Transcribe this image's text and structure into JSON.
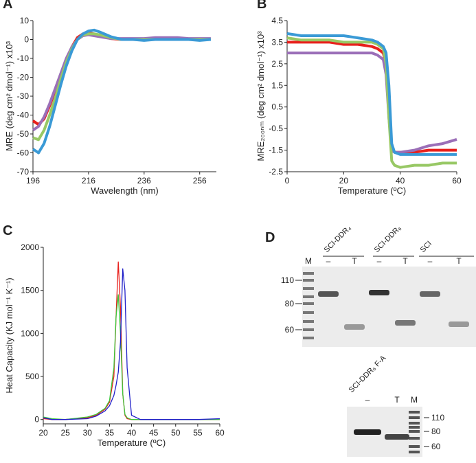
{
  "chart_data": [
    {
      "type": "line",
      "panel": "A",
      "xlabel": "Wavelength (nm)",
      "ylabel": "MRE (deg cm² dmol⁻¹) x10³",
      "x": [
        196,
        198,
        200,
        202,
        204,
        206,
        208,
        210,
        212,
        214,
        216,
        218,
        220,
        224,
        228,
        232,
        236,
        240,
        244,
        248,
        252,
        256,
        260
      ],
      "series": [
        {
          "color": "#e8201c",
          "values": [
            -43,
            -45,
            -42,
            -35,
            -27,
            -19,
            -11,
            -4,
            1,
            3,
            3.5,
            3,
            2,
            0.5,
            0,
            0,
            0,
            0,
            0,
            0,
            0,
            0,
            0
          ]
        },
        {
          "color": "#9b6fb8",
          "values": [
            -48,
            -46,
            -41,
            -34,
            -26,
            -18,
            -10,
            -4,
            0,
            2,
            2.5,
            2,
            1.5,
            0.5,
            0.5,
            0.5,
            0.5,
            1,
            1,
            1,
            0.5,
            0.5,
            0.5
          ]
        },
        {
          "color": "#98c865",
          "values": [
            -52,
            -53,
            -48,
            -40,
            -31,
            -21,
            -12,
            -5,
            0,
            2.5,
            3,
            3,
            2.5,
            1,
            0,
            0,
            0,
            0,
            0,
            0,
            0,
            0,
            0
          ]
        },
        {
          "color": "#3a9ad6",
          "values": [
            -58,
            -60,
            -55,
            -46,
            -35,
            -24,
            -14,
            -6,
            0,
            3,
            4.5,
            5,
            4,
            1.5,
            0,
            0,
            -0.5,
            0,
            0,
            0,
            0,
            -0.5,
            0
          ]
        }
      ],
      "xlim": [
        196,
        262
      ],
      "xticks": [
        196,
        216,
        236,
        256
      ],
      "ylim": [
        -70,
        10
      ],
      "yticks": [
        -70,
        -60,
        -50,
        -40,
        -30,
        -20,
        -10,
        0,
        10
      ]
    },
    {
      "type": "line",
      "panel": "B",
      "xlabel": "Temperature (ºC)",
      "ylabel": "MRE₂₀₀ₙₘ (deg cm² dmol⁻¹) x10³",
      "x": [
        0,
        5,
        10,
        15,
        20,
        25,
        30,
        32,
        34,
        35,
        36,
        37,
        38,
        40,
        45,
        50,
        55,
        60
      ],
      "series": [
        {
          "color": "#e8201c",
          "values": [
            3.5,
            3.5,
            3.5,
            3.5,
            3.4,
            3.4,
            3.3,
            3.2,
            3.0,
            2.5,
            0.5,
            -1.5,
            -1.6,
            -1.6,
            -1.6,
            -1.5,
            -1.5,
            -1.5
          ]
        },
        {
          "color": "#9b6fb8",
          "values": [
            3.0,
            3.0,
            3.0,
            3.0,
            3.0,
            3.0,
            3.0,
            2.9,
            2.7,
            2.0,
            0,
            -1.5,
            -1.6,
            -1.6,
            -1.5,
            -1.3,
            -1.2,
            -1.0
          ]
        },
        {
          "color": "#98c865",
          "values": [
            3.7,
            3.6,
            3.6,
            3.6,
            3.5,
            3.5,
            3.5,
            3.4,
            3.2,
            2.5,
            0,
            -2.0,
            -2.2,
            -2.3,
            -2.2,
            -2.2,
            -2.1,
            -2.1
          ]
        },
        {
          "color": "#3a9ad6",
          "values": [
            3.9,
            3.8,
            3.8,
            3.8,
            3.8,
            3.7,
            3.6,
            3.5,
            3.3,
            3.0,
            1.5,
            -1.2,
            -1.6,
            -1.7,
            -1.7,
            -1.7,
            -1.7,
            -1.7
          ]
        }
      ],
      "xlim": [
        0,
        60
      ],
      "xticks": [
        0,
        20,
        40,
        60
      ],
      "ylim": [
        -2.5,
        4.5
      ],
      "yticks": [
        -2.5,
        -1.5,
        -0.5,
        0.5,
        1.5,
        2.5,
        3.5,
        4.5
      ]
    },
    {
      "type": "line",
      "panel": "C",
      "xlabel": "Temperature (ºC)",
      "ylabel": "Heat Capacity (KJ mol⁻¹ K⁻¹)",
      "x": [
        20,
        22,
        25,
        30,
        32,
        34,
        35,
        36,
        36.5,
        37,
        37.5,
        38,
        38.5,
        39,
        40,
        42,
        45,
        50,
        55,
        60
      ],
      "series": [
        {
          "color": "#e8201c",
          "values": [
            10,
            0,
            0,
            20,
            50,
            120,
            200,
            500,
            1200,
            1830,
            1300,
            300,
            50,
            10,
            0,
            0,
            0,
            0,
            0,
            0
          ]
        },
        {
          "color": "#3cc83c",
          "values": [
            30,
            10,
            0,
            30,
            60,
            130,
            220,
            600,
            1200,
            1450,
            1000,
            300,
            60,
            20,
            0,
            0,
            0,
            0,
            0,
            0
          ]
        },
        {
          "color": "#2020c8",
          "values": [
            20,
            0,
            0,
            10,
            40,
            100,
            160,
            280,
            400,
            550,
            900,
            1750,
            1500,
            600,
            50,
            0,
            0,
            0,
            0,
            10
          ]
        }
      ],
      "xlim": [
        20,
        60
      ],
      "xticks": [
        20,
        25,
        30,
        35,
        40,
        45,
        50,
        55,
        60
      ],
      "ylim": [
        -50,
        2000
      ],
      "yticks": [
        0,
        500,
        1000,
        1500,
        2000
      ]
    }
  ],
  "gel": {
    "panel": "D",
    "top": {
      "groups": [
        "SCI-DDR₄",
        "SCI-DDR₆",
        "SCI"
      ],
      "lanes": [
        "M",
        "–",
        "T",
        "–",
        "T",
        "–",
        "T"
      ],
      "markers": [
        "110",
        "80",
        "60"
      ]
    },
    "bottom": {
      "label": "SCI-DDR₆ F-A",
      "lanes": [
        "–",
        "T",
        "M"
      ],
      "markers": [
        "110",
        "80",
        "60"
      ]
    }
  }
}
